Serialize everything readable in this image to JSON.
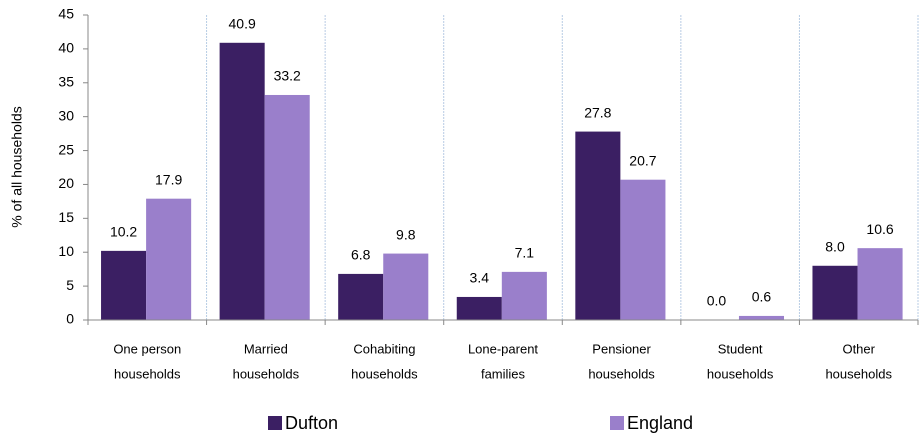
{
  "chart_data": {
    "type": "bar",
    "y_label": "% of all households",
    "categories": [
      [
        "One person",
        "households"
      ],
      [
        "Married",
        "households"
      ],
      [
        "Cohabiting",
        "households"
      ],
      [
        "Lone-parent",
        "families"
      ],
      [
        "Pensioner",
        "households"
      ],
      [
        "Student",
        "households"
      ],
      [
        "Other",
        "households"
      ]
    ],
    "series": [
      {
        "name": "Dufton",
        "color": "#3b1f63",
        "values": [
          10.2,
          40.9,
          6.8,
          3.4,
          27.8,
          0,
          8
        ],
        "value_labels": [
          "10.2",
          "40.9",
          "6.8",
          "3.4",
          "27.8",
          "0.0",
          "8.0"
        ]
      },
      {
        "name": "England",
        "color": "#9a7fcb",
        "values": [
          17.9,
          33.2,
          9.8,
          7.1,
          20.7,
          0.6,
          10.6
        ],
        "value_labels": [
          "17.9",
          "33.2",
          "9.8",
          "7.1",
          "20.7",
          "0.6",
          "10.6"
        ]
      }
    ],
    "ylim": [
      0,
      45
    ],
    "yticks": [
      0,
      5,
      10,
      15,
      20,
      25,
      30,
      35,
      40,
      45
    ],
    "grid": "vertical",
    "legend": "bottom"
  }
}
